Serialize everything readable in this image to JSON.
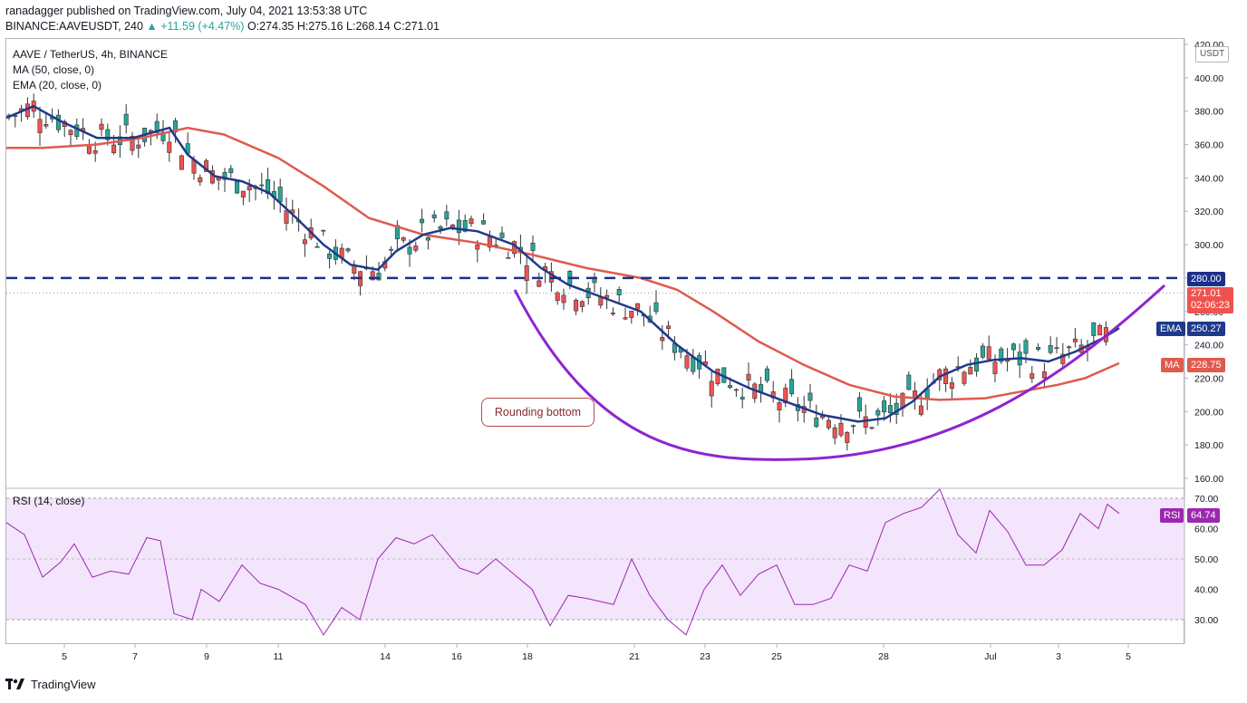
{
  "header": {
    "published": "ranadagger published on TradingView.com, July 04, 2021 13:53:38 UTC",
    "symbol": "BINANCE:AAVEUSDT, 240",
    "change": "+11.59 (+4.47%)",
    "ohlc": "O:274.35  H:275.16  L:268.14  C:271.01"
  },
  "legend": {
    "pair": "AAVE / TetherUS, 4h, BINANCE",
    "ma": "MA (50, close, 0)",
    "ema": "EMA (20, close, 0)",
    "rsi": "RSI (14, close)"
  },
  "annotation": {
    "callout": "Rounding bottom"
  },
  "price_tags": {
    "resistance": "280.00",
    "current": "271.01",
    "countdown": "02:06:23",
    "ema_label": "EMA",
    "ema_value": "250.27",
    "ma_label": "MA",
    "ma_value": "228.75",
    "rsi_label": "RSI",
    "rsi_value": "64.74",
    "currency": "USDT"
  },
  "footer": {
    "brand": "TradingView"
  },
  "colors": {
    "up": "#26a69a",
    "down": "#ef5350",
    "ema": "#1f3a8a",
    "ma": "#e05a4e",
    "curve": "#8e24d0",
    "resistance": "#1c2f8a",
    "rsi": "#9c27b0",
    "rsi_bg": "#f3e5fb"
  },
  "chart_data": {
    "type": "candlestick",
    "title": "AAVE / TetherUS, 4h, BINANCE",
    "x_ticks": [
      "5",
      "7",
      "9",
      "11",
      "14",
      "16",
      "18",
      "21",
      "23",
      "25",
      "28",
      "Jul",
      "3",
      "5"
    ],
    "y_ticks": [
      "160.00",
      "180.00",
      "200.00",
      "220.00",
      "240.00",
      "260.00",
      "280.00",
      "300.00",
      "320.00",
      "340.00",
      "360.00",
      "380.00",
      "400.00",
      "420.00"
    ],
    "ylim": [
      154,
      420
    ],
    "rsi_ticks": [
      "30.00",
      "40.00",
      "50.00",
      "60.00",
      "70.00"
    ],
    "rsi_ylim": [
      20,
      73
    ],
    "resistance_level": 280,
    "last_close": 271.01,
    "series": [
      {
        "name": "MA (50, close, 0)",
        "value_last": 228.75,
        "points": [
          [
            0,
            358
          ],
          [
            40,
            358
          ],
          [
            100,
            360
          ],
          [
            150,
            364
          ],
          [
            200,
            370
          ],
          [
            240,
            366
          ],
          [
            300,
            352
          ],
          [
            350,
            335
          ],
          [
            400,
            316
          ],
          [
            460,
            306
          ],
          [
            520,
            301
          ],
          [
            580,
            294
          ],
          [
            640,
            286
          ],
          [
            700,
            280
          ],
          [
            740,
            273
          ],
          [
            780,
            260
          ],
          [
            830,
            242
          ],
          [
            880,
            228
          ],
          [
            930,
            216
          ],
          [
            980,
            209
          ],
          [
            1030,
            207
          ],
          [
            1080,
            208
          ],
          [
            1120,
            212
          ],
          [
            1160,
            216
          ],
          [
            1190,
            220
          ],
          [
            1228,
            229
          ]
        ]
      },
      {
        "name": "EMA (20, close, 0)",
        "value_last": 250.27,
        "points": [
          [
            0,
            376
          ],
          [
            30,
            383
          ],
          [
            60,
            374
          ],
          [
            100,
            364
          ],
          [
            140,
            364
          ],
          [
            180,
            370
          ],
          [
            200,
            354
          ],
          [
            230,
            341
          ],
          [
            260,
            338
          ],
          [
            290,
            331
          ],
          [
            320,
            316
          ],
          [
            350,
            300
          ],
          [
            380,
            288
          ],
          [
            410,
            285
          ],
          [
            430,
            296
          ],
          [
            460,
            306
          ],
          [
            490,
            310
          ],
          [
            520,
            308
          ],
          [
            560,
            300
          ],
          [
            590,
            286
          ],
          [
            620,
            276
          ],
          [
            660,
            268
          ],
          [
            700,
            260
          ],
          [
            740,
            240
          ],
          [
            780,
            224
          ],
          [
            820,
            214
          ],
          [
            860,
            206
          ],
          [
            900,
            198
          ],
          [
            940,
            194
          ],
          [
            970,
            196
          ],
          [
            1000,
            206
          ],
          [
            1030,
            221
          ],
          [
            1060,
            228
          ],
          [
            1090,
            231
          ],
          [
            1120,
            232
          ],
          [
            1150,
            230
          ],
          [
            1180,
            236
          ],
          [
            1210,
            244
          ],
          [
            1228,
            250
          ]
        ]
      },
      {
        "name": "RSI (14, close)",
        "value_last": 64.74,
        "points": [
          [
            0,
            62
          ],
          [
            20,
            58
          ],
          [
            40,
            44
          ],
          [
            60,
            49
          ],
          [
            75,
            55
          ],
          [
            95,
            44
          ],
          [
            115,
            46
          ],
          [
            135,
            45
          ],
          [
            155,
            57
          ],
          [
            170,
            56
          ],
          [
            185,
            32
          ],
          [
            205,
            30
          ],
          [
            215,
            40
          ],
          [
            235,
            36
          ],
          [
            260,
            48
          ],
          [
            280,
            42
          ],
          [
            300,
            40
          ],
          [
            330,
            35
          ],
          [
            350,
            25
          ],
          [
            370,
            34
          ],
          [
            390,
            30
          ],
          [
            410,
            50
          ],
          [
            430,
            57
          ],
          [
            450,
            55
          ],
          [
            470,
            58
          ],
          [
            500,
            47
          ],
          [
            520,
            45
          ],
          [
            540,
            50
          ],
          [
            560,
            45
          ],
          [
            580,
            40
          ],
          [
            600,
            28
          ],
          [
            620,
            38
          ],
          [
            640,
            37
          ],
          [
            670,
            35
          ],
          [
            690,
            50
          ],
          [
            710,
            38
          ],
          [
            730,
            30
          ],
          [
            750,
            25
          ],
          [
            770,
            40
          ],
          [
            790,
            48
          ],
          [
            810,
            38
          ],
          [
            830,
            45
          ],
          [
            850,
            48
          ],
          [
            870,
            35
          ],
          [
            890,
            35
          ],
          [
            910,
            37
          ],
          [
            930,
            48
          ],
          [
            950,
            46
          ],
          [
            970,
            62
          ],
          [
            990,
            65
          ],
          [
            1010,
            67
          ],
          [
            1030,
            73
          ],
          [
            1050,
            58
          ],
          [
            1070,
            52
          ],
          [
            1085,
            66
          ],
          [
            1105,
            59
          ],
          [
            1125,
            48
          ],
          [
            1145,
            48
          ],
          [
            1165,
            53
          ],
          [
            1185,
            65
          ],
          [
            1205,
            60
          ],
          [
            1215,
            68
          ],
          [
            1228,
            65
          ]
        ]
      }
    ]
  }
}
